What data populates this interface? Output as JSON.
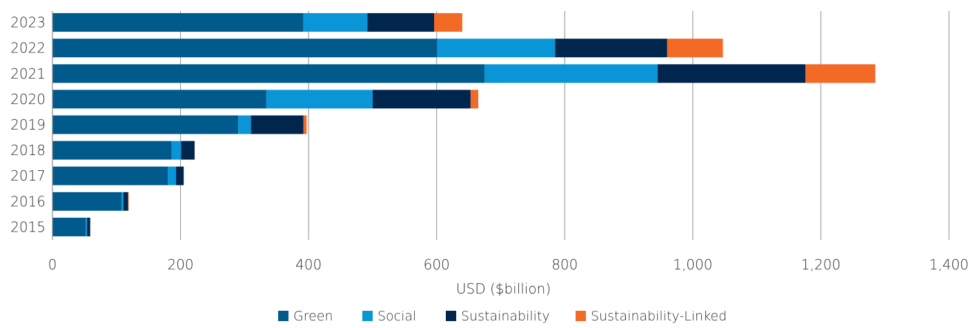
{
  "chart_data": {
    "type": "bar",
    "orientation": "horizontal",
    "stacked": true,
    "categories": [
      "2023",
      "2022",
      "2021",
      "2020",
      "2019",
      "2018",
      "2017",
      "2016",
      "2015"
    ],
    "series": [
      {
        "name": "Green",
        "color": "#005a8c",
        "values": [
          392,
          601,
          675,
          334,
          290,
          186,
          180,
          108,
          52
        ]
      },
      {
        "name": "Social",
        "color": "#0a96d6",
        "values": [
          100,
          184,
          270,
          166,
          20,
          15,
          13,
          3,
          2
        ]
      },
      {
        "name": "Sustainability",
        "color": "#00264d",
        "values": [
          104,
          175,
          231,
          153,
          82,
          21,
          12,
          7,
          5
        ]
      },
      {
        "name": "Sustainability-Linked",
        "color": "#f26a25",
        "values": [
          44,
          87,
          109,
          12,
          5,
          0,
          0,
          1,
          0
        ]
      }
    ],
    "xlabel": "USD ($billion)",
    "ylabel": "",
    "xlim": [
      0,
      1400
    ],
    "xticks": [
      0,
      200,
      400,
      600,
      800,
      1000,
      1200,
      1400
    ],
    "xtick_labels": [
      "0",
      "200",
      "400",
      "600",
      "800",
      "1,000",
      "1,200",
      "1,400"
    ],
    "grid": "vertical",
    "legend_position": "bottom"
  }
}
